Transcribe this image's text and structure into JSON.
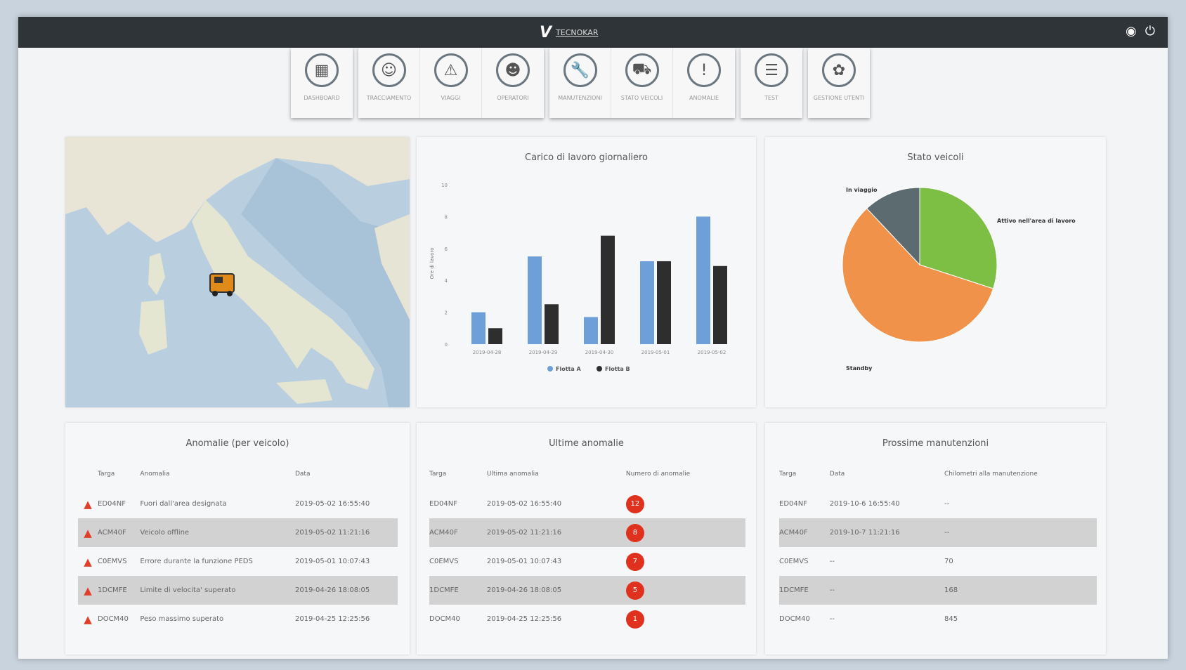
{
  "header": {
    "brand": "TECNOKAR",
    "logo_mark": "V",
    "icons": [
      "user-icon",
      "power-icon"
    ]
  },
  "nav": {
    "groups": [
      [
        {
          "label": "Dashboard",
          "icon": "▦"
        }
      ],
      [
        {
          "label": "Tracciamento",
          "icon": "☺"
        },
        {
          "label": "Viaggi",
          "icon": "⚠"
        },
        {
          "label": "Operatori",
          "icon": "☻"
        }
      ],
      [
        {
          "label": "Manutenzioni",
          "icon": "🔧"
        },
        {
          "label": "Stato veicoli",
          "icon": "⛟"
        },
        {
          "label": "Anomalie",
          "icon": "!"
        }
      ],
      [
        {
          "label": "Test",
          "icon": "☰"
        }
      ],
      [
        {
          "label": "Gestione utenti",
          "icon": "✿"
        }
      ]
    ]
  },
  "bar_panel": {
    "title": "Carico di lavoro giornaliero"
  },
  "pie_panel": {
    "title": "Stato veicoli"
  },
  "chart_data": [
    {
      "type": "bar",
      "title": "Carico di lavoro giornaliero",
      "ylabel": "Ore di lavoro",
      "ylim": [
        0,
        10
      ],
      "yticks": [
        0,
        2,
        4,
        6,
        8,
        10
      ],
      "categories": [
        "2019-04-28",
        "2019-04-29",
        "2019-04-30",
        "2019-05-01",
        "2019-05-02"
      ],
      "series": [
        {
          "name": "Flotta A",
          "color": "#6f9fd8",
          "values": [
            2,
            5.5,
            1.7,
            5.2,
            8
          ]
        },
        {
          "name": "Flotta B",
          "color": "#2e2e2e",
          "values": [
            1,
            2.5,
            6.8,
            5.2,
            4.9
          ]
        }
      ],
      "legend": "bottom",
      "grid": false
    },
    {
      "type": "pie",
      "title": "Stato veicoli",
      "slices": [
        {
          "label": "Attivo nell'area di lavoro",
          "value": 30,
          "color": "#7cbf44"
        },
        {
          "label": "Standby",
          "value": 58,
          "color": "#f0924a"
        },
        {
          "label": "In viaggio",
          "value": 12,
          "color": "#5c6b70"
        }
      ]
    }
  ],
  "anomalie": {
    "title": "Anomalie (per veicolo)",
    "headers": [
      "Targa",
      "Anomalia",
      "Data"
    ],
    "rows": [
      [
        "ED04NF",
        "Fuori dall'area designata",
        "2019-05-02 16:55:40"
      ],
      [
        "ACM40F",
        "Veicolo offline",
        "2019-05-02 11:21:16"
      ],
      [
        "C0EMVS",
        "Errore durante la funzione PEDS",
        "2019-05-01 10:07:43"
      ],
      [
        "1DCMFE",
        "Limite di velocita' superato",
        "2019-04-26 18:08:05"
      ],
      [
        "DOCM40",
        "Peso massimo superato",
        "2019-04-25 12:25:56"
      ]
    ]
  },
  "ultime": {
    "title": "Ultime anomalie",
    "headers": [
      "Targa",
      "Ultima anomalia",
      "Numero di anomalie"
    ],
    "rows": [
      [
        "ED04NF",
        "2019-05-02 16:55:40",
        "12"
      ],
      [
        "ACM40F",
        "2019-05-02 11:21:16",
        "8"
      ],
      [
        "C0EMVS",
        "2019-05-01 10:07:43",
        "7"
      ],
      [
        "1DCMFE",
        "2019-04-26 18:08:05",
        "5"
      ],
      [
        "DOCM40",
        "2019-04-25 12:25:56",
        "1"
      ]
    ]
  },
  "manutenzioni": {
    "title": "Prossime manutenzioni",
    "headers": [
      "Targa",
      "Data",
      "Chilometri alla manutenzione"
    ],
    "rows": [
      [
        "ED04NF",
        "2019-10-6 16:55:40",
        "--"
      ],
      [
        "ACM40F",
        "2019-10-7 11:21:16",
        "--"
      ],
      [
        "C0EMVS",
        "--",
        "70"
      ],
      [
        "1DCMFE",
        "--",
        "168"
      ],
      [
        "DOCM40",
        "--",
        "845"
      ]
    ]
  }
}
